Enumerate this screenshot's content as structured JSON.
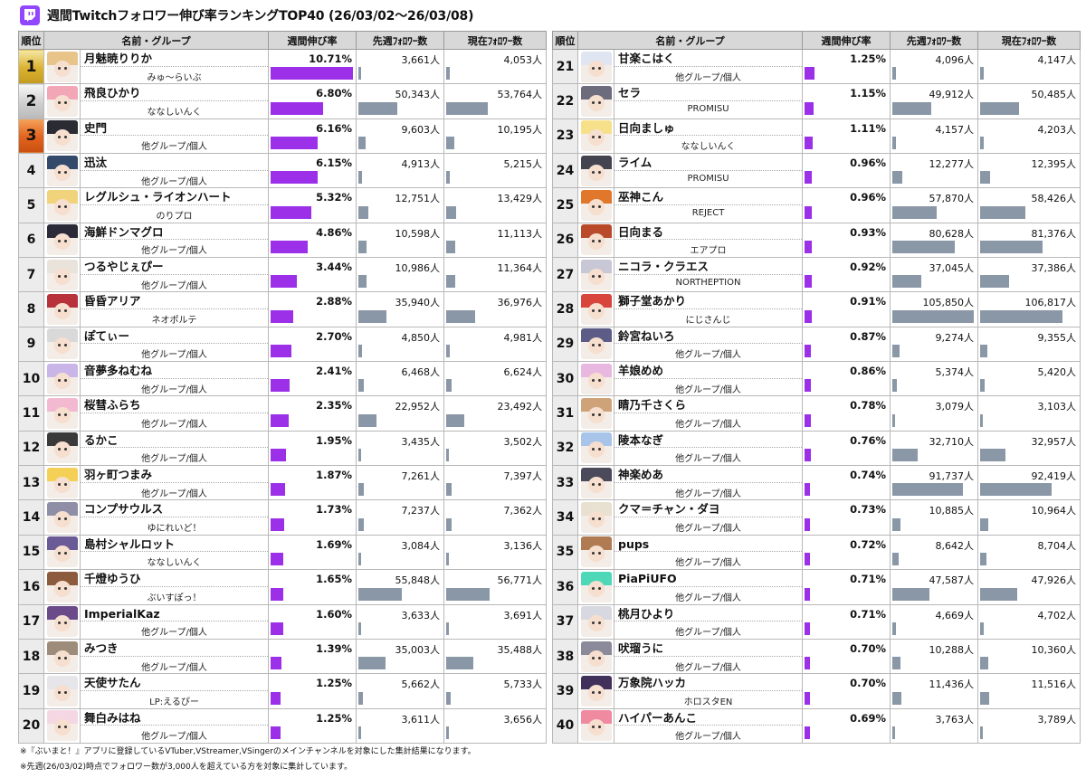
{
  "title": "週間Twitchフォロワー伸び率ランキングTOP40 (26/03/02～26/03/08)",
  "icons": {
    "logo": "twitch-logo-icon"
  },
  "colors": {
    "growth_bar": "#9b30e8",
    "follower_bar": "#8a97a6",
    "twitch": "#9146ff"
  },
  "columns": {
    "rank": "順位",
    "name": "名前・グループ",
    "growth": "週間伸び率",
    "prev": "先週ﾌｫﾛﾜｰ数",
    "curr": "現在ﾌｫﾛﾜｰ数"
  },
  "notes": [
    "※『ぶいまと！』アプリに登録しているVTuber,VStreamer,VSingerのメインチャンネルを対象にした集計結果になります。",
    "※先週(26/03/02)時点でフォロワー数が3,000人を超えている方を対象に集計しています。"
  ],
  "chart_data": {
    "type": "table",
    "title": "週間Twitchフォロワー伸び率ランキングTOP40 (26/03/02～26/03/08)",
    "rows": [
      {
        "rank": "1",
        "name": "月魅暁りりか",
        "group": "みゅ～らいぶ",
        "growth": "10.71%",
        "growth_value": 10.71,
        "prev": "3,661人",
        "prev_value": 3661,
        "curr": "4,053人",
        "curr_value": 4053
      },
      {
        "rank": "2",
        "name": "飛良ひかり",
        "group": "ななしいんく",
        "growth": "6.80%",
        "growth_value": 6.8,
        "prev": "50,343人",
        "prev_value": 50343,
        "curr": "53,764人",
        "curr_value": 53764
      },
      {
        "rank": "3",
        "name": "史門",
        "group": "他グループ/個人",
        "growth": "6.16%",
        "growth_value": 6.16,
        "prev": "9,603人",
        "prev_value": 9603,
        "curr": "10,195人",
        "curr_value": 10195
      },
      {
        "rank": "4",
        "name": "迅汰",
        "group": "他グループ/個人",
        "growth": "6.15%",
        "growth_value": 6.15,
        "prev": "4,913人",
        "prev_value": 4913,
        "curr": "5,215人",
        "curr_value": 5215
      },
      {
        "rank": "5",
        "name": "レグルシュ・ライオンハート",
        "group": "のりプロ",
        "growth": "5.32%",
        "growth_value": 5.32,
        "prev": "12,751人",
        "prev_value": 12751,
        "curr": "13,429人",
        "curr_value": 13429
      },
      {
        "rank": "6",
        "name": "海鮮ドンマグロ",
        "group": "他グループ/個人",
        "growth": "4.86%",
        "growth_value": 4.86,
        "prev": "10,598人",
        "prev_value": 10598,
        "curr": "11,113人",
        "curr_value": 11113
      },
      {
        "rank": "7",
        "name": "つるやじぇぴー",
        "group": "他グループ/個人",
        "growth": "3.44%",
        "growth_value": 3.44,
        "prev": "10,986人",
        "prev_value": 10986,
        "curr": "11,364人",
        "curr_value": 11364
      },
      {
        "rank": "8",
        "name": "昏昏アリア",
        "group": "ネオポルテ",
        "growth": "2.88%",
        "growth_value": 2.88,
        "prev": "35,940人",
        "prev_value": 35940,
        "curr": "36,976人",
        "curr_value": 36976
      },
      {
        "rank": "9",
        "name": "ぽてぃー",
        "group": "他グループ/個人",
        "growth": "2.70%",
        "growth_value": 2.7,
        "prev": "4,850人",
        "prev_value": 4850,
        "curr": "4,981人",
        "curr_value": 4981
      },
      {
        "rank": "10",
        "name": "音夢多ねむね",
        "group": "他グループ/個人",
        "growth": "2.41%",
        "growth_value": 2.41,
        "prev": "6,468人",
        "prev_value": 6468,
        "curr": "6,624人",
        "curr_value": 6624
      },
      {
        "rank": "11",
        "name": "桜彗ふらち",
        "group": "他グループ/個人",
        "growth": "2.35%",
        "growth_value": 2.35,
        "prev": "22,952人",
        "prev_value": 22952,
        "curr": "23,492人",
        "curr_value": 23492
      },
      {
        "rank": "12",
        "name": "るかこ",
        "group": "他グループ/個人",
        "growth": "1.95%",
        "growth_value": 1.95,
        "prev": "3,435人",
        "prev_value": 3435,
        "curr": "3,502人",
        "curr_value": 3502
      },
      {
        "rank": "13",
        "name": "羽ヶ町つまみ",
        "group": "他グループ/個人",
        "growth": "1.87%",
        "growth_value": 1.87,
        "prev": "7,261人",
        "prev_value": 7261,
        "curr": "7,397人",
        "curr_value": 7397
      },
      {
        "rank": "14",
        "name": "コンプサウルス",
        "group": "ゆにれいど！",
        "growth": "1.73%",
        "growth_value": 1.73,
        "prev": "7,237人",
        "prev_value": 7237,
        "curr": "7,362人",
        "curr_value": 7362
      },
      {
        "rank": "15",
        "name": "島村シャルロット",
        "group": "ななしいんく",
        "growth": "1.69%",
        "growth_value": 1.69,
        "prev": "3,084人",
        "prev_value": 3084,
        "curr": "3,136人",
        "curr_value": 3136
      },
      {
        "rank": "16",
        "name": "千燈ゆうひ",
        "group": "ぶいすぽっ！",
        "growth": "1.65%",
        "growth_value": 1.65,
        "prev": "55,848人",
        "prev_value": 55848,
        "curr": "56,771人",
        "curr_value": 56771
      },
      {
        "rank": "17",
        "name": "ImperialKaz",
        "group": "他グループ/個人",
        "growth": "1.60%",
        "growth_value": 1.6,
        "prev": "3,633人",
        "prev_value": 3633,
        "curr": "3,691人",
        "curr_value": 3691
      },
      {
        "rank": "18",
        "name": "みつき",
        "group": "他グループ/個人",
        "growth": "1.39%",
        "growth_value": 1.39,
        "prev": "35,003人",
        "prev_value": 35003,
        "curr": "35,488人",
        "curr_value": 35488
      },
      {
        "rank": "19",
        "name": "天使サたん",
        "group": "LP:えるぴー",
        "growth": "1.25%",
        "growth_value": 1.25,
        "prev": "5,662人",
        "prev_value": 5662,
        "curr": "5,733人",
        "curr_value": 5733
      },
      {
        "rank": "20",
        "name": "舞白みはね",
        "group": "他グループ/個人",
        "growth": "1.25%",
        "growth_value": 1.25,
        "prev": "3,611人",
        "prev_value": 3611,
        "curr": "3,656人",
        "curr_value": 3656
      },
      {
        "rank": "21",
        "name": "甘楽こはく",
        "group": "他グループ/個人",
        "growth": "1.25%",
        "growth_value": 1.25,
        "prev": "4,096人",
        "prev_value": 4096,
        "curr": "4,147人",
        "curr_value": 4147
      },
      {
        "rank": "22",
        "name": "セラ",
        "group": "PROMISU",
        "growth": "1.15%",
        "growth_value": 1.15,
        "prev": "49,912人",
        "prev_value": 49912,
        "curr": "50,485人",
        "curr_value": 50485
      },
      {
        "rank": "23",
        "name": "日向ましゅ",
        "group": "ななしいんく",
        "growth": "1.11%",
        "growth_value": 1.11,
        "prev": "4,157人",
        "prev_value": 4157,
        "curr": "4,203人",
        "curr_value": 4203
      },
      {
        "rank": "24",
        "name": "ライム",
        "group": "PROMISU",
        "growth": "0.96%",
        "growth_value": 0.96,
        "prev": "12,277人",
        "prev_value": 12277,
        "curr": "12,395人",
        "curr_value": 12395
      },
      {
        "rank": "25",
        "name": "巫神こん",
        "group": "REJECT",
        "growth": "0.96%",
        "growth_value": 0.96,
        "prev": "57,870人",
        "prev_value": 57870,
        "curr": "58,426人",
        "curr_value": 58426
      },
      {
        "rank": "26",
        "name": "日向まる",
        "group": "エアプロ",
        "growth": "0.93%",
        "growth_value": 0.93,
        "prev": "80,628人",
        "prev_value": 80628,
        "curr": "81,376人",
        "curr_value": 81376
      },
      {
        "rank": "27",
        "name": "ニコラ・クラエス",
        "group": "NORTHEPTION",
        "growth": "0.92%",
        "growth_value": 0.92,
        "prev": "37,045人",
        "prev_value": 37045,
        "curr": "37,386人",
        "curr_value": 37386
      },
      {
        "rank": "28",
        "name": "獅子堂あかり",
        "group": "にじさんじ",
        "growth": "0.91%",
        "growth_value": 0.91,
        "prev": "105,850人",
        "prev_value": 105850,
        "curr": "106,817人",
        "curr_value": 106817
      },
      {
        "rank": "29",
        "name": "鈴宮ねいろ",
        "group": "他グループ/個人",
        "growth": "0.87%",
        "growth_value": 0.87,
        "prev": "9,274人",
        "prev_value": 9274,
        "curr": "9,355人",
        "curr_value": 9355
      },
      {
        "rank": "30",
        "name": "羊娘めめ",
        "group": "他グループ/個人",
        "growth": "0.86%",
        "growth_value": 0.86,
        "prev": "5,374人",
        "prev_value": 5374,
        "curr": "5,420人",
        "curr_value": 5420
      },
      {
        "rank": "31",
        "name": "睛乃千さくら",
        "group": "他グループ/個人",
        "growth": "0.78%",
        "growth_value": 0.78,
        "prev": "3,079人",
        "prev_value": 3079,
        "curr": "3,103人",
        "curr_value": 3103
      },
      {
        "rank": "32",
        "name": "陵本なぎ",
        "group": "他グループ/個人",
        "growth": "0.76%",
        "growth_value": 0.76,
        "prev": "32,710人",
        "prev_value": 32710,
        "curr": "32,957人",
        "curr_value": 32957
      },
      {
        "rank": "33",
        "name": "神楽めあ",
        "group": "他グループ/個人",
        "growth": "0.74%",
        "growth_value": 0.74,
        "prev": "91,737人",
        "prev_value": 91737,
        "curr": "92,419人",
        "curr_value": 92419
      },
      {
        "rank": "34",
        "name": "クマ＝チャン・ダヨ",
        "group": "他グループ/個人",
        "growth": "0.73%",
        "growth_value": 0.73,
        "prev": "10,885人",
        "prev_value": 10885,
        "curr": "10,964人",
        "curr_value": 10964
      },
      {
        "rank": "35",
        "name": "pups",
        "group": "他グループ/個人",
        "growth": "0.72%",
        "growth_value": 0.72,
        "prev": "8,642人",
        "prev_value": 8642,
        "curr": "8,704人",
        "curr_value": 8704
      },
      {
        "rank": "36",
        "name": "PiaPiUFO",
        "group": "他グループ/個人",
        "growth": "0.71%",
        "growth_value": 0.71,
        "prev": "47,587人",
        "prev_value": 47587,
        "curr": "47,926人",
        "curr_value": 47926
      },
      {
        "rank": "37",
        "name": "桃月ひより",
        "group": "他グループ/個人",
        "growth": "0.71%",
        "growth_value": 0.71,
        "prev": "4,669人",
        "prev_value": 4669,
        "curr": "4,702人",
        "curr_value": 4702
      },
      {
        "rank": "38",
        "name": "吠瑠うに",
        "group": "他グループ/個人",
        "growth": "0.70%",
        "growth_value": 0.7,
        "prev": "10,288人",
        "prev_value": 10288,
        "curr": "10,360人",
        "curr_value": 10360
      },
      {
        "rank": "39",
        "name": "万象院ハッカ",
        "group": "ホロスタEN",
        "growth": "0.70%",
        "growth_value": 0.7,
        "prev": "11,436人",
        "prev_value": 11436,
        "curr": "11,516人",
        "curr_value": 11516
      },
      {
        "rank": "40",
        "name": "ハイパーあんこ",
        "group": "他グループ/個人",
        "growth": "0.69%",
        "growth_value": 0.69,
        "prev": "3,763人",
        "prev_value": 3763,
        "curr": "3,789人",
        "curr_value": 3789
      }
    ]
  }
}
